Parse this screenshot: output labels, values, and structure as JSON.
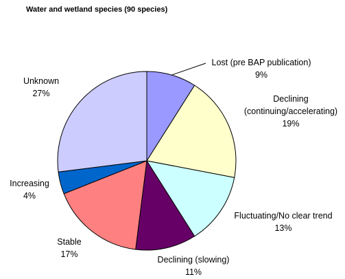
{
  "chart_data": {
    "type": "pie",
    "title": "Water and wetland species (90 species)",
    "slices": [
      {
        "label": "Lost (pre BAP publication)",
        "label_lines": [
          "Lost (pre BAP publication)",
          "9%"
        ],
        "percent": 9,
        "color": "#9999FF"
      },
      {
        "label": "Declining (continuing/accelerating)",
        "label_lines": [
          "Declining",
          "(continuing/accelerating)",
          "19%"
        ],
        "percent": 19,
        "color": "#FFFFCC"
      },
      {
        "label": "Fluctuating/No clear trend",
        "label_lines": [
          "Fluctuating/No clear trend",
          "13%"
        ],
        "percent": 13,
        "color": "#CCFFFF"
      },
      {
        "label": "Declining (slowing)",
        "label_lines": [
          "Declining (slowing)",
          "11%"
        ],
        "percent": 11,
        "color": "#660066"
      },
      {
        "label": "Stable",
        "label_lines": [
          "Stable",
          "17%"
        ],
        "percent": 17,
        "color": "#FF8080"
      },
      {
        "label": "Increasing",
        "label_lines": [
          "Increasing",
          "4%"
        ],
        "percent": 4,
        "color": "#0066CC"
      },
      {
        "label": "Unknown",
        "label_lines": [
          "Unknown",
          "27%"
        ],
        "percent": 27,
        "color": "#CCCCFF"
      }
    ],
    "start_angle_deg": 0,
    "direction": "clockwise",
    "legend": "none"
  }
}
